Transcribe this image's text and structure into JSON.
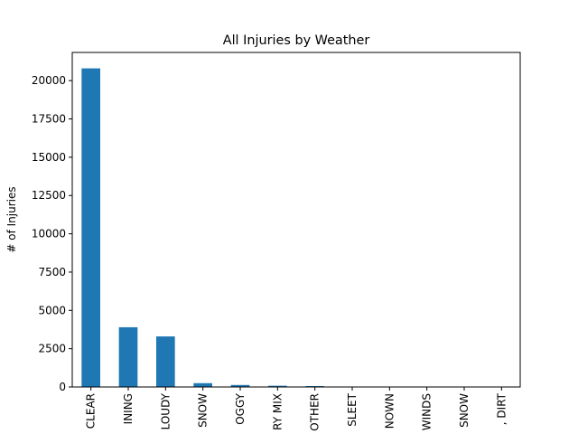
{
  "chart_data": {
    "type": "bar",
    "title": "All Injuries by Weather",
    "xlabel": "",
    "ylabel": "# of Injuries",
    "categories": [
      "CLEAR",
      "RAINING",
      "CLOUDY",
      "SNOW",
      "FOGGY",
      "FREEZING RAIN/SLEET/SLUSH MIX",
      "OTHER",
      "SLEET",
      "UNKNOWN",
      "SEVERE CROSSWINDS",
      "BLOWING SNOW",
      "BLOWING SAND, SOIL, DIRT"
    ],
    "tick_labels": [
      "CLEAR",
      "INING",
      "LOUDY",
      "SNOW",
      "OGGY",
      "RY MIX",
      "OTHER",
      "SLEET",
      "NOWN",
      "WINDS",
      "SNOW",
      ", DIRT"
    ],
    "values": [
      20800,
      3900,
      3300,
      250,
      130,
      80,
      60,
      15,
      10,
      5,
      5,
      3
    ],
    "ylim": [
      0,
      21840
    ],
    "yticks": [
      0,
      2500,
      5000,
      7500,
      10000,
      12500,
      15000,
      17500,
      20000
    ],
    "bar_color": "#1f77b4",
    "grid": false,
    "legend": "none"
  }
}
